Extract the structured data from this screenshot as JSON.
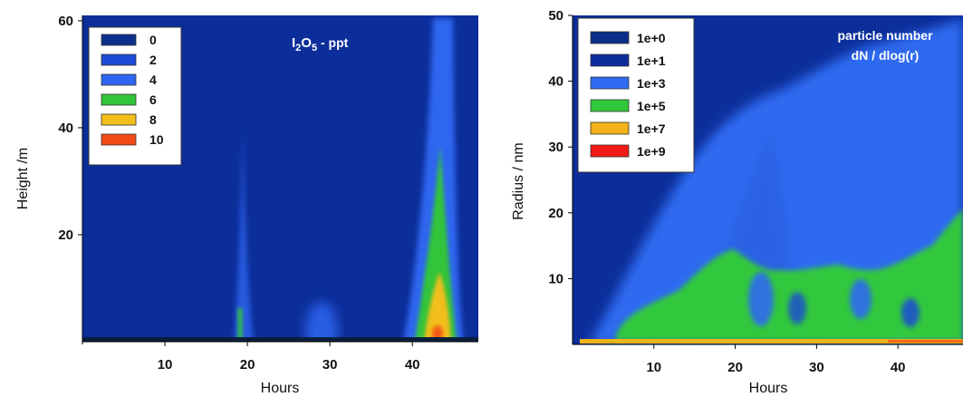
{
  "chart_data": [
    {
      "type": "heatmap",
      "title": "I2O5 - ppt",
      "title_parts": [
        "I",
        "2",
        "O",
        "5",
        " - ppt"
      ],
      "xlabel": "Hours",
      "ylabel": "Height /m",
      "xlim": [
        0,
        48
      ],
      "ylim": [
        0,
        61
      ],
      "xticks": [
        "10",
        "20",
        "30",
        "40"
      ],
      "xtick_values": [
        10,
        20,
        30,
        40
      ],
      "yticks": [
        "20",
        "40",
        "60"
      ],
      "ytick_values": [
        20,
        40,
        60
      ],
      "legend_position": "top-left",
      "legend": [
        {
          "label": "0",
          "color": "#0b2f8a"
        },
        {
          "label": "2",
          "color": "#1d4ad6"
        },
        {
          "label": "4",
          "color": "#2f66f0"
        },
        {
          "label": "6",
          "color": "#31c43a"
        },
        {
          "label": "8",
          "color": "#f2be1a"
        },
        {
          "label": "10",
          "color": "#f24a16"
        }
      ],
      "background_color": "#0c2e9a",
      "features": [
        {
          "x": 20,
          "y_top": 50,
          "width": 1.2,
          "peak": 6
        },
        {
          "x": 29,
          "y_top": 8,
          "width": 2.0,
          "peak": 3
        },
        {
          "x": 44,
          "y_top": 61,
          "width": 2.6,
          "peak": 10
        }
      ]
    },
    {
      "type": "heatmap",
      "title": "particle number",
      "subtitle": "dN / dlog(r)",
      "xlabel": "Hours",
      "ylabel": "Radius / nm",
      "xlim": [
        0,
        48
      ],
      "ylim": [
        0,
        50
      ],
      "xticks": [
        "10",
        "20",
        "30",
        "40"
      ],
      "xtick_values": [
        10,
        20,
        30,
        40
      ],
      "yticks": [
        "10",
        "20",
        "30",
        "40",
        "50"
      ],
      "ytick_values": [
        10,
        20,
        30,
        40,
        50
      ],
      "legend_position": "top-left",
      "legend": [
        {
          "label": "1e+0",
          "color": "#0b2f8a"
        },
        {
          "label": "1e+1",
          "color": "#0d2c9c"
        },
        {
          "label": "1e+3",
          "color": "#2f6af0"
        },
        {
          "label": "1e+5",
          "color": "#32c83c"
        },
        {
          "label": "1e+7",
          "color": "#f2b21a"
        },
        {
          "label": "1e+9",
          "color": "#f21a16"
        }
      ],
      "background_color": "#0c2e9a",
      "features": [
        {
          "region": "1e+3 plume",
          "x_range": [
            2,
            48
          ],
          "r_max": 38
        },
        {
          "region": "1e+5 band",
          "x_range": [
            3,
            48
          ],
          "r_max": 18
        },
        {
          "region": "1e+7 surface layer",
          "x_range": [
            2,
            48
          ],
          "r_max": 1
        }
      ]
    }
  ]
}
